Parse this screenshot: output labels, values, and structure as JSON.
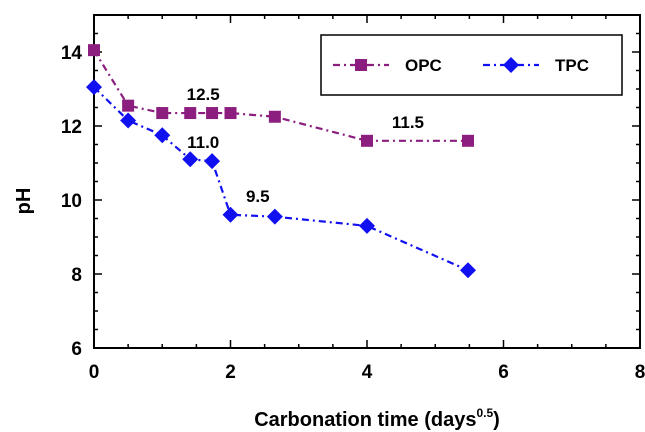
{
  "chart_data": {
    "type": "line",
    "xlabel": "Carbonation time (days",
    "xlabel_superscript": "0.5",
    "xlabel_suffix": ")",
    "ylabel": "pH",
    "xlim": [
      0,
      8
    ],
    "ylim": [
      6,
      15
    ],
    "x_ticks": [
      "0",
      "2",
      "4",
      "6",
      "8"
    ],
    "y_ticks": [
      "6",
      "8",
      "10",
      "12",
      "14"
    ],
    "grid": false,
    "legend_position": "top-right",
    "series": [
      {
        "name": "OPC",
        "color": "#8B1E7E",
        "marker": "square",
        "line_style": "dash-dot",
        "x": [
          0,
          0.5,
          1,
          1.41,
          1.73,
          2,
          2.65,
          4,
          5.48
        ],
        "y": [
          14.05,
          12.55,
          12.35,
          12.35,
          12.35,
          12.35,
          12.25,
          11.6,
          11.6
        ]
      },
      {
        "name": "TPC",
        "color": "#1010F0",
        "marker": "diamond",
        "line_style": "dash-dot",
        "x": [
          0,
          0.5,
          1,
          1.41,
          1.73,
          2,
          2.65,
          4,
          5.48
        ],
        "y": [
          13.05,
          12.15,
          11.75,
          11.1,
          11.05,
          9.6,
          9.55,
          9.3,
          8.1
        ]
      }
    ],
    "annotations": [
      {
        "text": "12.5",
        "x": 1.6,
        "y": 12.7
      },
      {
        "text": "11.0",
        "x": 1.6,
        "y": 11.4
      },
      {
        "text": "9.5",
        "x": 2.4,
        "y": 9.95
      },
      {
        "text": "11.5",
        "x": 4.6,
        "y": 11.95
      }
    ]
  }
}
